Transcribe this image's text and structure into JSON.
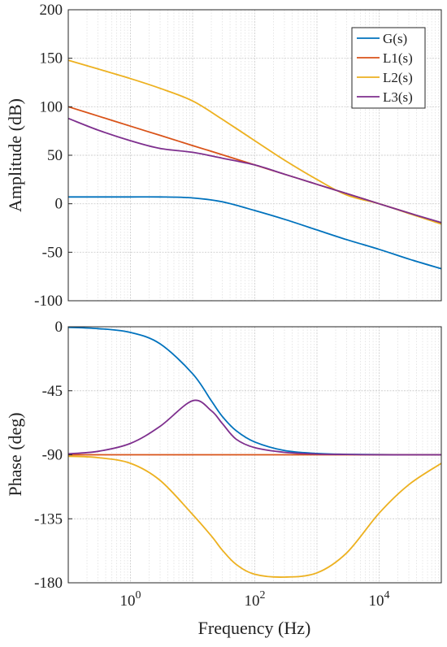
{
  "chart_data": [
    {
      "type": "line",
      "xscale": "log",
      "xlim": [
        0.1,
        100000
      ],
      "ylim": [
        -100,
        200
      ],
      "yticks": [
        -100,
        -50,
        0,
        50,
        100,
        150,
        200
      ],
      "ytick_labels": [
        "-100",
        "-50",
        "0",
        "50",
        "100",
        "150",
        "200"
      ],
      "xticks": [
        1,
        100,
        10000
      ],
      "xtick_labels": [
        {
          "base": "10",
          "exp": "0"
        },
        {
          "base": "10",
          "exp": "2"
        },
        {
          "base": "10",
          "exp": "4"
        }
      ],
      "xlabel": "",
      "ylabel": "Amplitude (dB)",
      "grid": true,
      "legend": "top-right",
      "x": [
        0.1,
        0.3,
        1,
        3,
        10,
        30,
        100,
        300,
        1000,
        3000,
        10000,
        30000,
        100000
      ],
      "series": [
        {
          "name": "G(s)",
          "color": "#0072BD",
          "values": [
            7,
            7,
            7,
            7,
            6,
            2,
            -7,
            -16,
            -27,
            -37,
            -47,
            -57,
            -67
          ]
        },
        {
          "name": "L1(s)",
          "color": "#D95319",
          "values": [
            100,
            90.5,
            80,
            70.5,
            60,
            50.5,
            40,
            30.5,
            20,
            10.5,
            0,
            -9.5,
            -20
          ]
        },
        {
          "name": "L2(s)",
          "color": "#EDB120",
          "values": [
            148,
            139,
            129,
            119,
            106,
            87,
            65,
            45,
            25,
            9,
            0,
            -10,
            -21
          ]
        },
        {
          "name": "L3(s)",
          "color": "#7E2F8E",
          "values": [
            88,
            76,
            65,
            57,
            53,
            47,
            40,
            30.5,
            20,
            10.5,
            0,
            -9.5,
            -19.5
          ]
        }
      ]
    },
    {
      "type": "line",
      "xscale": "log",
      "xlim": [
        0.1,
        100000
      ],
      "ylim": [
        -180,
        0
      ],
      "yticks": [
        -180,
        -135,
        -90,
        -45,
        0
      ],
      "ytick_labels": [
        "-180",
        "-135",
        "-90",
        "-45",
        "0"
      ],
      "xticks": [
        1,
        100,
        10000
      ],
      "xtick_labels": [
        {
          "base": "10",
          "exp": "0"
        },
        {
          "base": "10",
          "exp": "2"
        },
        {
          "base": "10",
          "exp": "4"
        }
      ],
      "xlabel": "Frequency (Hz)",
      "ylabel": "Phase (deg)",
      "grid": true,
      "x": [
        0.1,
        0.3,
        1,
        3,
        10,
        20,
        30,
        50,
        100,
        300,
        1000,
        3000,
        10000,
        30000,
        100000
      ],
      "series": [
        {
          "name": "G(s)",
          "color": "#0072BD",
          "values": [
            -0.4,
            -1.3,
            -4,
            -12,
            -33,
            -52,
            -63,
            -73,
            -81,
            -87,
            -89.1,
            -89.7,
            -89.9,
            -90,
            -90
          ]
        },
        {
          "name": "L1(s)",
          "color": "#D95319",
          "values": [
            -90,
            -90,
            -90,
            -90,
            -90,
            -90,
            -90,
            -90,
            -90,
            -90,
            -90,
            -90,
            -90,
            -90,
            -90
          ]
        },
        {
          "name": "L2(s)",
          "color": "#EDB120",
          "values": [
            -91,
            -92,
            -96,
            -108,
            -132,
            -147,
            -157,
            -167,
            -174,
            -176,
            -173,
            -159,
            -131,
            -111,
            -96
          ]
        },
        {
          "name": "L3(s)",
          "color": "#7E2F8E",
          "values": [
            -89.3,
            -87.6,
            -82,
            -70,
            -52,
            -59,
            -68,
            -79,
            -85,
            -88.3,
            -89.5,
            -89.8,
            -90,
            -90,
            -90
          ]
        }
      ]
    }
  ]
}
